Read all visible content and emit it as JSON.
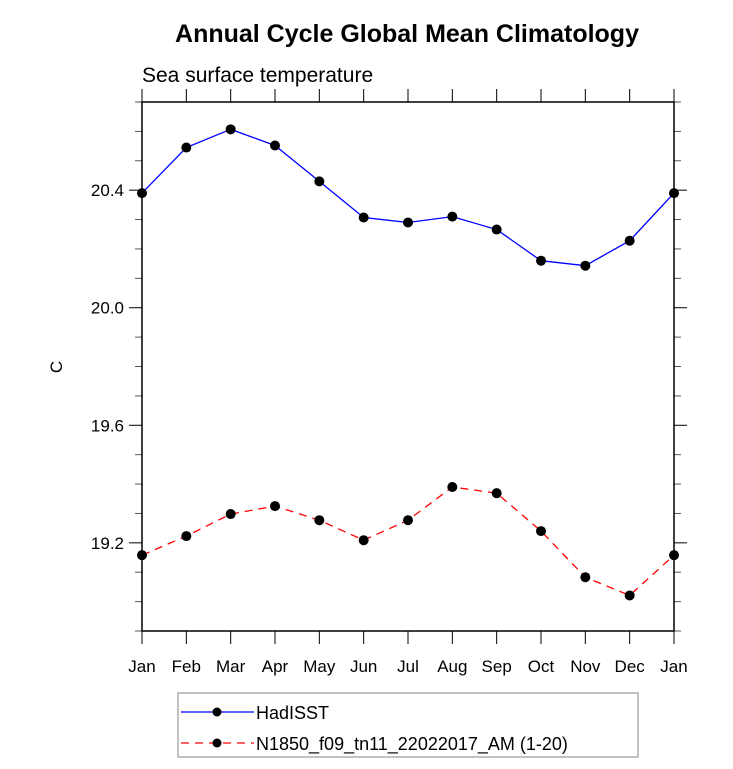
{
  "chart_data": {
    "type": "line",
    "title": "Annual Cycle Global Mean Climatology",
    "subtitle": "Sea surface temperature",
    "xlabel": "",
    "ylabel": "C",
    "categories": [
      "Jan",
      "Feb",
      "Mar",
      "Apr",
      "May",
      "Jun",
      "Jul",
      "Aug",
      "Sep",
      "Oct",
      "Nov",
      "Dec",
      "Jan"
    ],
    "ylim": [
      18.9,
      20.7
    ],
    "yticks": [
      19.2,
      19.6,
      20.0,
      20.4
    ],
    "ytick_labels": [
      "19.2",
      "19.6",
      "20.0",
      "20.4"
    ],
    "y_minor_step": 0.1,
    "grid": false,
    "legend_position": "bottom-center",
    "series": [
      {
        "name": "HadISST",
        "color": "#0000ff",
        "line_style": "solid",
        "marker": "filled-circle",
        "marker_color": "#000000",
        "values": [
          20.39,
          20.545,
          20.607,
          20.552,
          20.43,
          20.307,
          20.29,
          20.31,
          20.266,
          20.16,
          20.143,
          20.228,
          20.39
        ]
      },
      {
        "name": "N1850_f09_tn11_22022017_AM (1-20)",
        "color": "#ff0000",
        "line_style": "dashed",
        "marker": "filled-circle",
        "marker_color": "#000000",
        "values": [
          19.158,
          19.223,
          19.298,
          19.325,
          19.277,
          19.209,
          19.277,
          19.39,
          19.369,
          19.24,
          19.083,
          19.021,
          19.158
        ]
      }
    ]
  }
}
